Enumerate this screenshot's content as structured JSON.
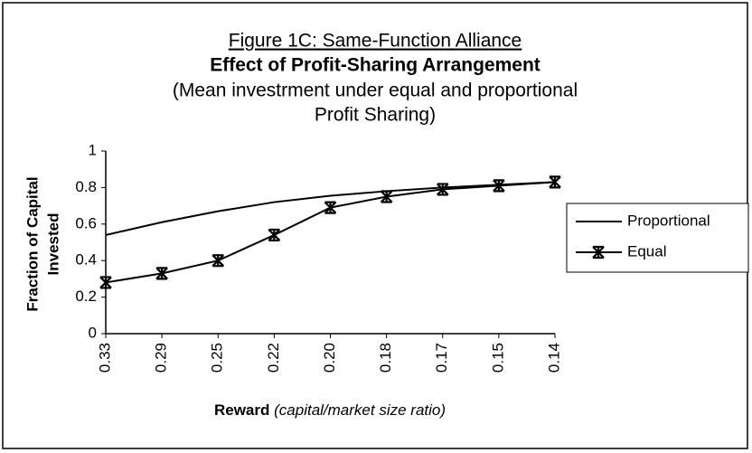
{
  "chart_data": {
    "type": "line",
    "title": "Figure 1C: Same-Function Alliance",
    "subtitle": "Effect of Profit-Sharing Arrangement",
    "note": [
      "(Mean investrment under equal and proportional",
      "Profit Sharing)"
    ],
    "ylabel": [
      "Fraction of Capital",
      "Invested"
    ],
    "xlabel": "Reward",
    "xlabel_note": "(capital/market size ratio)",
    "categories": [
      "0.33",
      "0.29",
      "0.25",
      "0.22",
      "0.20",
      "0.18",
      "0.17",
      "0.15",
      "0.14"
    ],
    "series": [
      {
        "name": "Proportional",
        "color": "#000000",
        "marker": "none",
        "values": [
          0.54,
          0.61,
          0.67,
          0.72,
          0.755,
          0.78,
          0.8,
          0.815,
          0.83
        ]
      },
      {
        "name": "Equal",
        "color": "#000000",
        "marker": "star",
        "values": [
          0.28,
          0.33,
          0.4,
          0.54,
          0.69,
          0.75,
          0.79,
          0.81,
          0.83
        ]
      }
    ],
    "ylim": [
      0,
      1
    ],
    "yticks": [
      0,
      0.2,
      0.4,
      0.6,
      0.8,
      1
    ],
    "grid": false,
    "legend": "right"
  }
}
